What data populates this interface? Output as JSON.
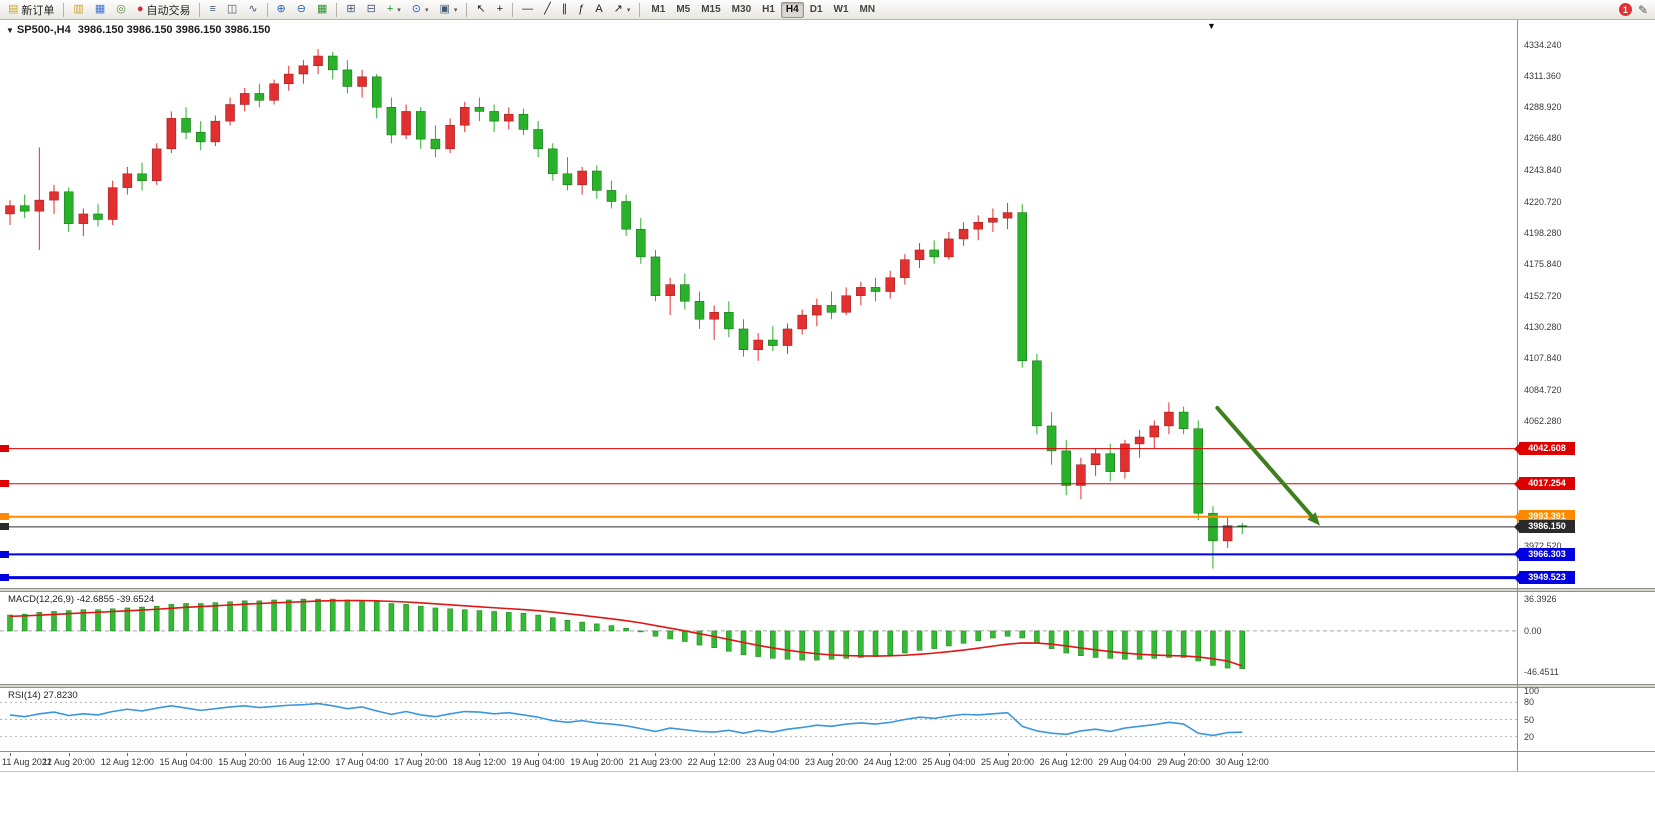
{
  "toolbar": {
    "items": [
      {
        "type": "button",
        "name": "new-order",
        "label": "新订单",
        "glyph": "▤",
        "glyph_color": "#c9a227"
      },
      {
        "type": "sep"
      },
      {
        "type": "button",
        "name": "charts",
        "glyph": "▥",
        "glyph_color": "#c9a227"
      },
      {
        "type": "button",
        "name": "profiles",
        "glyph": "▦",
        "glyph_color": "#3b6fd4"
      },
      {
        "type": "button",
        "name": "refresh",
        "glyph": "◎",
        "glyph_color": "#5f8f3f"
      },
      {
        "type": "button",
        "name": "autotrading",
        "label": "自动交易",
        "glyph": "●",
        "glyph_color": "#d03030"
      },
      {
        "type": "sep"
      },
      {
        "type": "button",
        "name": "bar-chart-mode",
        "glyph": "≡",
        "glyph_color": "#445a77"
      },
      {
        "type": "button",
        "name": "candle-chart-mode",
        "glyph": "◫",
        "glyph_color": "#445a77"
      },
      {
        "type": "button",
        "name": "line-chart-mode",
        "glyph": "∿",
        "glyph_color": "#445a77"
      },
      {
        "type": "sep"
      },
      {
        "type": "button",
        "name": "zoom-in",
        "glyph": "⊕",
        "glyph_color": "#2a62b8"
      },
      {
        "type": "button",
        "name": "zoom-out",
        "glyph": "⊖",
        "glyph_color": "#2a62b8"
      },
      {
        "type": "button",
        "name": "grid",
        "glyph": "▦",
        "glyph_color": "#2f8f2f"
      },
      {
        "type": "sep"
      },
      {
        "type": "button",
        "name": "tile-windows",
        "glyph": "⊞",
        "glyph_color": "#445a77"
      },
      {
        "type": "button",
        "name": "auto-scroll",
        "glyph": "⊟",
        "glyph_color": "#445a77"
      },
      {
        "type": "button",
        "name": "indicators",
        "glyph": "+",
        "glyph_color": "#1f8f1f",
        "caret": true
      },
      {
        "type": "button",
        "name": "periods",
        "glyph": "⊙",
        "glyph_color": "#2a62b8",
        "caret": true
      },
      {
        "type": "button",
        "name": "templates",
        "glyph": "▣",
        "glyph_color": "#445a77",
        "caret": true
      },
      {
        "type": "sep"
      },
      {
        "type": "button",
        "name": "cursor",
        "glyph": "↖",
        "glyph_color": "#222222"
      },
      {
        "type": "button",
        "name": "crosshair",
        "glyph": "+",
        "glyph_color": "#222222"
      },
      {
        "type": "sep"
      },
      {
        "type": "button",
        "name": "horizontal-line",
        "glyph": "―",
        "glyph_color": "#222222"
      },
      {
        "type": "button",
        "name": "trendline",
        "glyph": "╱",
        "glyph_color": "#222222"
      },
      {
        "type": "button",
        "name": "equidistant-channel",
        "glyph": "∥",
        "glyph_color": "#222222"
      },
      {
        "type": "button",
        "name": "fibonacci",
        "glyph": "ƒ",
        "glyph_color": "#222222"
      },
      {
        "type": "button",
        "name": "text",
        "glyph": "A",
        "glyph_color": "#222222"
      },
      {
        "type": "button",
        "name": "arrows",
        "glyph": "↗",
        "glyph_color": "#222222",
        "caret": true
      },
      {
        "type": "sep"
      },
      {
        "type": "timeframes"
      }
    ],
    "timeframes": [
      "M1",
      "M5",
      "M15",
      "M30",
      "H1",
      "H4",
      "D1",
      "W1",
      "MN"
    ],
    "active_timeframe": "H4",
    "notification_count": "1",
    "edit_icon_glyph": "✎"
  },
  "chart_header": {
    "symbol_period": "SP500-,H4",
    "ohlc": "3986.150 3986.150 3986.150 3986.150",
    "dropdown_glyph": "▼",
    "shift_marker_glyph": "▼"
  },
  "chart_data": {
    "type": "candlestick",
    "symbol": "SP500-",
    "timeframe": "H4",
    "current_price": 3986.15,
    "ylim": [
      3942,
      4352
    ],
    "up_color": "#e22f2f",
    "down_color": "#29b129",
    "up_border": "#8f1d1d",
    "down_border": "#136913",
    "candles": [
      [
        4212,
        4222,
        4204,
        4218
      ],
      [
        4218,
        4226,
        4209,
        4214
      ],
      [
        4214,
        4260,
        4186,
        4222
      ],
      [
        4222,
        4233,
        4212,
        4228
      ],
      [
        4228,
        4231,
        4199,
        4205
      ],
      [
        4205,
        4216,
        4196,
        4212
      ],
      [
        4212,
        4219,
        4203,
        4208
      ],
      [
        4208,
        4236,
        4204,
        4231
      ],
      [
        4231,
        4246,
        4226,
        4241
      ],
      [
        4241,
        4249,
        4229,
        4236
      ],
      [
        4236,
        4263,
        4233,
        4259
      ],
      [
        4259,
        4286,
        4256,
        4281
      ],
      [
        4281,
        4289,
        4266,
        4271
      ],
      [
        4271,
        4279,
        4258,
        4264
      ],
      [
        4264,
        4283,
        4261,
        4279
      ],
      [
        4279,
        4296,
        4276,
        4291
      ],
      [
        4291,
        4303,
        4286,
        4299
      ],
      [
        4299,
        4306,
        4289,
        4294
      ],
      [
        4294,
        4309,
        4291,
        4306
      ],
      [
        4306,
        4319,
        4301,
        4313
      ],
      [
        4313,
        4323,
        4306,
        4319
      ],
      [
        4319,
        4331,
        4313,
        4326
      ],
      [
        4326,
        4329,
        4309,
        4316
      ],
      [
        4316,
        4323,
        4299,
        4304
      ],
      [
        4304,
        4316,
        4296,
        4311
      ],
      [
        4311,
        4313,
        4281,
        4289
      ],
      [
        4289,
        4296,
        4263,
        4269
      ],
      [
        4269,
        4291,
        4266,
        4286
      ],
      [
        4286,
        4289,
        4259,
        4266
      ],
      [
        4266,
        4276,
        4253,
        4259
      ],
      [
        4259,
        4281,
        4256,
        4276
      ],
      [
        4276,
        4293,
        4271,
        4289
      ],
      [
        4289,
        4296,
        4279,
        4286
      ],
      [
        4286,
        4291,
        4271,
        4279
      ],
      [
        4279,
        4289,
        4273,
        4284
      ],
      [
        4284,
        4288,
        4269,
        4273
      ],
      [
        4273,
        4279,
        4253,
        4259
      ],
      [
        4259,
        4263,
        4236,
        4241
      ],
      [
        4241,
        4253,
        4229,
        4233
      ],
      [
        4233,
        4246,
        4226,
        4243
      ],
      [
        4243,
        4247,
        4223,
        4229
      ],
      [
        4229,
        4236,
        4216,
        4221
      ],
      [
        4221,
        4226,
        4196,
        4201
      ],
      [
        4201,
        4209,
        4176,
        4181
      ],
      [
        4181,
        4186,
        4149,
        4153
      ],
      [
        4153,
        4166,
        4139,
        4161
      ],
      [
        4161,
        4169,
        4143,
        4149
      ],
      [
        4149,
        4156,
        4129,
        4136
      ],
      [
        4136,
        4146,
        4121,
        4141
      ],
      [
        4141,
        4149,
        4123,
        4129
      ],
      [
        4129,
        4136,
        4109,
        4114
      ],
      [
        4114,
        4126,
        4106,
        4121
      ],
      [
        4121,
        4131,
        4113,
        4117
      ],
      [
        4117,
        4133,
        4111,
        4129
      ],
      [
        4129,
        4143,
        4125,
        4139
      ],
      [
        4139,
        4151,
        4131,
        4146
      ],
      [
        4146,
        4156,
        4136,
        4141
      ],
      [
        4141,
        4159,
        4139,
        4153
      ],
      [
        4153,
        4163,
        4146,
        4159
      ],
      [
        4159,
        4166,
        4149,
        4156
      ],
      [
        4156,
        4171,
        4151,
        4166
      ],
      [
        4166,
        4183,
        4161,
        4179
      ],
      [
        4179,
        4191,
        4173,
        4186
      ],
      [
        4186,
        4193,
        4176,
        4181
      ],
      [
        4181,
        4199,
        4179,
        4194
      ],
      [
        4194,
        4206,
        4189,
        4201
      ],
      [
        4201,
        4211,
        4193,
        4206
      ],
      [
        4206,
        4216,
        4199,
        4209
      ],
      [
        4209,
        4220,
        4201,
        4213
      ],
      [
        4213,
        4219,
        4101,
        4106
      ],
      [
        4106,
        4111,
        4053,
        4059
      ],
      [
        4059,
        4069,
        4031,
        4041
      ],
      [
        4041,
        4049,
        4009,
        4016
      ],
      [
        4016,
        4036,
        4006,
        4031
      ],
      [
        4031,
        4043,
        4023,
        4039
      ],
      [
        4039,
        4046,
        4019,
        4026
      ],
      [
        4026,
        4049,
        4021,
        4046
      ],
      [
        4046,
        4056,
        4036,
        4051
      ],
      [
        4051,
        4063,
        4043,
        4059
      ],
      [
        4059,
        4076,
        4053,
        4069
      ],
      [
        4069,
        4073,
        4053,
        4057
      ],
      [
        4057,
        4063,
        3991,
        3996
      ],
      [
        3996,
        4001,
        3956,
        3976
      ],
      [
        3976,
        3993,
        3971,
        3987
      ],
      [
        3987,
        3989,
        3981,
        3986.15
      ]
    ],
    "x_labels": [
      "11 Aug 2022",
      "11 Aug 20:00",
      "12 Aug 12:00",
      "15 Aug 04:00",
      "15 Aug 20:00",
      "16 Aug 12:00",
      "17 Aug 04:00",
      "17 Aug 20:00",
      "18 Aug 12:00",
      "19 Aug 04:00",
      "19 Aug 20:00",
      "21 Aug 23:00",
      "22 Aug 12:00",
      "23 Aug 04:00",
      "23 Aug 20:00",
      "24 Aug 12:00",
      "25 Aug 04:00",
      "25 Aug 20:00",
      "26 Aug 12:00",
      "29 Aug 04:00",
      "29 Aug 20:00",
      "30 Aug 12:00"
    ],
    "x_label_step": 4,
    "price_scale_labels": [
      {
        "t": "4334.240",
        "v": 4334.24
      },
      {
        "t": "4311.360",
        "v": 4311.36
      },
      {
        "t": "4288.920",
        "v": 4288.92
      },
      {
        "t": "4266.480",
        "v": 4266.48
      },
      {
        "t": "4243.840",
        "v": 4243.84
      },
      {
        "t": "4220.720",
        "v": 4220.72
      },
      {
        "t": "4198.280",
        "v": 4198.28
      },
      {
        "t": "4175.840",
        "v": 4175.84
      },
      {
        "t": "4152.720",
        "v": 4152.72
      },
      {
        "t": "4130.280",
        "v": 4130.28
      },
      {
        "t": "4107.840",
        "v": 4107.84
      },
      {
        "t": "4084.720",
        "v": 4084.72
      },
      {
        "t": "4062.280",
        "v": 4062.28
      },
      {
        "t": "3972.520",
        "v": 3972.52
      }
    ],
    "hlines": [
      {
        "label": "4042.608",
        "value": 4042.608,
        "color": "#dd0000",
        "width": 1
      },
      {
        "label": "4017.254",
        "value": 4017.254,
        "color": "#dd0000",
        "width": 1
      },
      {
        "label": "3993.391",
        "value": 3993.391,
        "color": "#ff8a00",
        "width": 2
      },
      {
        "label": "3986.150",
        "value": 3986.15,
        "color": "#2a2a2a",
        "width": 1,
        "kind": "bid"
      },
      {
        "label": "3966.303",
        "value": 3966.303,
        "color": "#0000e0",
        "width": 2
      },
      {
        "label": "3949.523",
        "value": 3949.523,
        "color": "#0000e0",
        "width": 3
      }
    ],
    "arrow": {
      "from_index": 82.3,
      "from_price": 4072,
      "to_index": 89.3,
      "to_price": 3987,
      "color": "#3f7f1f",
      "width": 4
    },
    "macd": {
      "title": "MACD(12,26,9)",
      "values_text": "-42.6855 -39.6524",
      "value_main": -42.6855,
      "value_signal": -39.6524,
      "ylim": [
        -60,
        44
      ],
      "hist_color": "#33bb33",
      "hist_border": "#1e7a1e",
      "signal_color": "#e01616",
      "axis_labels": [
        {
          "t": "36.3926",
          "v": 36.3926
        },
        {
          "t": "0.00",
          "v": 0
        },
        {
          "t": "-46.4511",
          "v": -46.4511
        }
      ],
      "histogram": [
        18,
        19,
        21,
        22,
        23,
        24,
        24,
        25,
        26,
        27,
        28,
        30,
        31,
        31,
        32,
        33,
        34,
        34,
        35,
        35,
        36,
        36,
        36,
        35,
        34,
        33,
        31,
        30,
        28,
        26,
        25,
        24,
        23,
        22,
        21,
        20,
        18,
        15,
        12,
        10,
        8,
        6,
        3,
        -1,
        -6,
        -9,
        -12,
        -16,
        -19,
        -23,
        -27,
        -29,
        -31,
        -32,
        -33,
        -33,
        -32,
        -31,
        -30,
        -29,
        -27,
        -25,
        -22,
        -20,
        -17,
        -14,
        -11,
        -8,
        -6,
        -8,
        -14,
        -20,
        -25,
        -28,
        -30,
        -31,
        -32,
        -32,
        -31,
        -30,
        -30,
        -34,
        -39,
        -42,
        -42.69
      ],
      "signal": [
        16.5,
        17.0,
        17.8,
        18.6,
        19.5,
        20.4,
        21.1,
        21.9,
        22.7,
        23.6,
        24.5,
        25.6,
        26.7,
        27.5,
        28.4,
        29.3,
        30.2,
        31.0,
        31.8,
        32.4,
        33.1,
        33.7,
        34.2,
        34.3,
        34.3,
        34.0,
        33.4,
        32.7,
        31.8,
        30.6,
        29.5,
        28.4,
        27.3,
        26.2,
        25.2,
        24.1,
        22.9,
        21.3,
        19.5,
        17.6,
        15.7,
        13.7,
        11.6,
        9.1,
        6.1,
        3.1,
        0.1,
        -3.1,
        -6.3,
        -9.6,
        -13.1,
        -16.3,
        -19.2,
        -21.8,
        -24.0,
        -25.8,
        -27.1,
        -27.9,
        -28.3,
        -28.4,
        -28.1,
        -27.5,
        -26.4,
        -25.1,
        -23.5,
        -21.6,
        -19.5,
        -17.2,
        -15.0,
        -13.6,
        -13.7,
        -15.0,
        -17.0,
        -19.2,
        -21.4,
        -23.3,
        -25.0,
        -26.4,
        -27.3,
        -27.9,
        -28.3,
        -29.4,
        -31.5,
        -34.0,
        -39.65
      ]
    },
    "rsi": {
      "title": "RSI(14)",
      "value_text": "27.8230",
      "value": 27.823,
      "ylim": [
        0,
        100
      ],
      "levels": [
        80,
        50,
        20
      ],
      "line_color": "#3a96dd",
      "axis_labels": [
        {
          "t": "100",
          "v": 100
        },
        {
          "t": "80",
          "v": 80
        },
        {
          "t": "50",
          "v": 50
        },
        {
          "t": "20",
          "v": 20
        }
      ],
      "values": [
        58,
        55,
        60,
        63,
        57,
        60,
        58,
        64,
        68,
        65,
        70,
        74,
        70,
        66,
        69,
        72,
        74,
        71,
        73,
        75,
        76,
        78,
        74,
        69,
        72,
        65,
        59,
        64,
        58,
        55,
        60,
        64,
        63,
        60,
        62,
        58,
        54,
        48,
        45,
        48,
        44,
        42,
        39,
        34,
        29,
        35,
        32,
        29,
        28,
        31,
        26,
        31,
        28,
        33,
        36,
        40,
        38,
        42,
        44,
        42,
        45,
        50,
        54,
        52,
        56,
        59,
        58,
        60,
        62,
        38,
        30,
        26,
        24,
        30,
        33,
        29,
        35,
        38,
        41,
        45,
        42,
        26,
        22,
        27,
        27.82
      ]
    }
  }
}
